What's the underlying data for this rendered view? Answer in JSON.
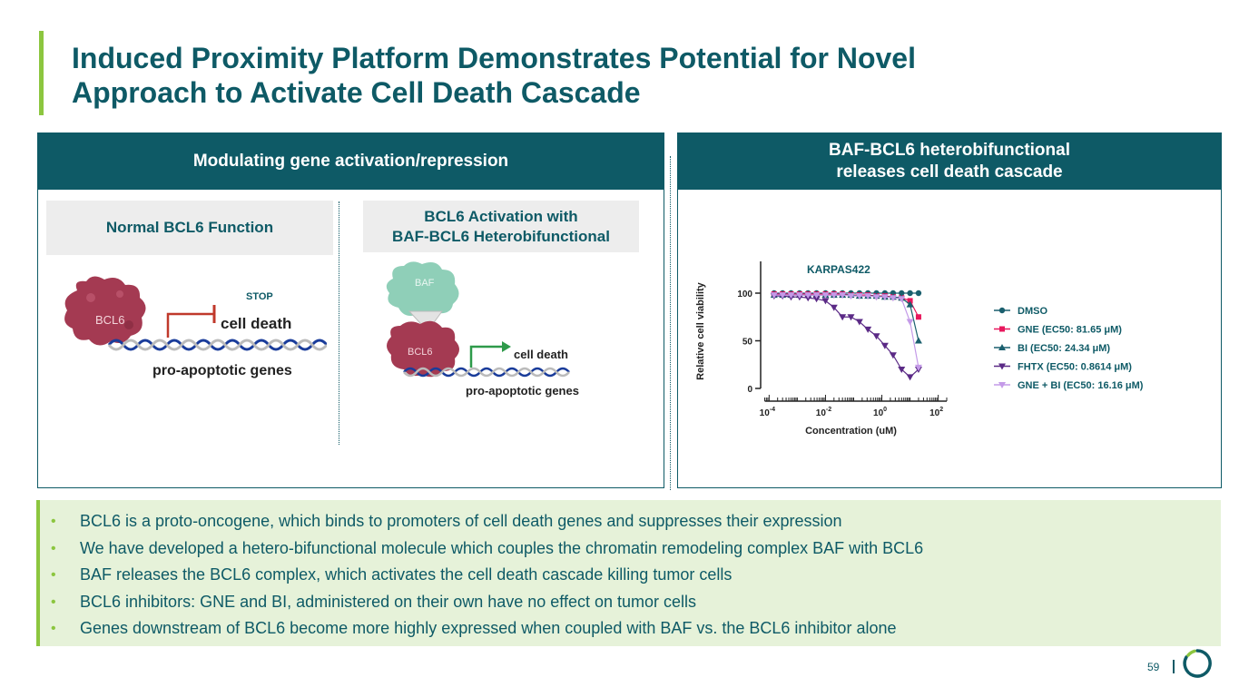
{
  "title": {
    "line1": "Induced Proximity Platform Demonstrates Potential for Novel",
    "line2": "Approach to Activate Cell Death Cascade"
  },
  "left_panel": {
    "header": "Modulating gene activation/repression",
    "normal": {
      "title": "Normal BCL6 Function",
      "stop_label": "STOP",
      "protein_label": "BCL6",
      "effect_label": "cell death",
      "genes_label": "pro-apoptotic genes"
    },
    "activation": {
      "title_line1": "BCL6 Activation with",
      "title_line2": "BAF-BCL6 Heterobifunctional",
      "baf_label": "BAF",
      "protein_label": "BCL6",
      "effect_label": "cell death",
      "genes_label": "pro-apoptotic genes"
    }
  },
  "right_panel": {
    "header_line1": "BAF-BCL6 heterobifunctional",
    "header_line2": "releases cell death cascade"
  },
  "chart_data": {
    "type": "line",
    "title": "KARPAS422",
    "xlabel": "Concentration (uM)",
    "ylabel": "Relative cell viability",
    "xscale": "log",
    "xlim": [
      5e-05,
      200
    ],
    "ylim": [
      0,
      120
    ],
    "xticks": [
      {
        "value": 0.0001,
        "base": "10",
        "exp": "-4"
      },
      {
        "value": 0.01,
        "base": "10",
        "exp": "-2"
      },
      {
        "value": 1,
        "base": "10",
        "exp": "0"
      },
      {
        "value": 100,
        "base": "10",
        "exp": "2"
      }
    ],
    "yticks": [
      0,
      50,
      100
    ],
    "series": [
      {
        "name": "DMSO",
        "color": "#1a5f6e",
        "marker": "circle",
        "x": [
          0.00015,
          0.0003,
          0.0006,
          0.0012,
          0.0024,
          0.0048,
          0.01,
          0.02,
          0.04,
          0.08,
          0.16,
          0.32,
          0.64,
          1.28,
          2.5,
          5,
          10,
          20
        ],
        "y": [
          100,
          100,
          100,
          100,
          100,
          100,
          100,
          100,
          100,
          100,
          100,
          100,
          100,
          100,
          100,
          100,
          100,
          100
        ]
      },
      {
        "name": "GNE (EC50: 81.65 μM)",
        "color": "#e8175d",
        "marker": "square",
        "x": [
          0.00015,
          0.0003,
          0.0006,
          0.0012,
          0.0024,
          0.0048,
          0.01,
          0.02,
          0.04,
          0.08,
          0.16,
          0.32,
          0.64,
          1.28,
          2.5,
          5,
          10,
          20
        ],
        "y": [
          99,
          99,
          99,
          99,
          99,
          99,
          99,
          99,
          99,
          98,
          98,
          98,
          97,
          97,
          96,
          95,
          92,
          75
        ]
      },
      {
        "name": "BI (EC50: 24.34 μM)",
        "color": "#1a5f6e",
        "marker": "triangle-up",
        "x": [
          0.00015,
          0.0003,
          0.0006,
          0.0012,
          0.0024,
          0.0048,
          0.01,
          0.02,
          0.04,
          0.08,
          0.16,
          0.32,
          0.64,
          1.28,
          2.5,
          5,
          10,
          20
        ],
        "y": [
          98,
          98,
          98,
          98,
          98,
          98,
          98,
          98,
          98,
          98,
          97,
          97,
          97,
          96,
          96,
          95,
          88,
          50
        ]
      },
      {
        "name": "FHTX (EC50: 0.8614 μM)",
        "color": "#5b2a86",
        "marker": "triangle-down",
        "x": [
          0.00015,
          0.0003,
          0.0006,
          0.0012,
          0.0024,
          0.0048,
          0.01,
          0.02,
          0.04,
          0.08,
          0.16,
          0.32,
          0.64,
          1.28,
          2.5,
          5,
          10,
          20
        ],
        "y": [
          97,
          97,
          96,
          96,
          95,
          94,
          92,
          85,
          75,
          75,
          70,
          62,
          55,
          45,
          35,
          20,
          12,
          20
        ]
      },
      {
        "name": "GNE + BI (EC50: 16.16 μM)",
        "color": "#c49ae8",
        "marker": "triangle-down",
        "x": [
          0.00015,
          0.0003,
          0.0006,
          0.0012,
          0.0024,
          0.0048,
          0.01,
          0.02,
          0.04,
          0.08,
          0.16,
          0.32,
          0.64,
          1.28,
          2.5,
          5,
          10,
          20
        ],
        "y": [
          98,
          98,
          98,
          98,
          98,
          98,
          98,
          98,
          98,
          97,
          97,
          97,
          96,
          96,
          95,
          94,
          70,
          22
        ]
      }
    ]
  },
  "bullets": [
    "BCL6 is a proto-oncogene, which binds to promoters of cell death genes and suppresses their expression",
    "We have developed a hetero-bifunctional molecule which couples the chromatin remodeling complex BAF with BCL6",
    "BAF releases the BCL6 complex, which activates the cell death cascade killing tumor cells",
    "BCL6 inhibitors: GNE and BI, administered on their own have no effect on tumor cells",
    "Genes downstream of BCL6 become more highly expressed when coupled with BAF vs. the BCL6 inhibitor alone"
  ],
  "bullet_marker": "•",
  "page_number": "59",
  "colors": {
    "primary": "#0e5a66",
    "accent": "#8cc63f",
    "bullet_bg": "#e6f2d9",
    "protein": "#a43a52",
    "baf": "#8fcfb8"
  }
}
